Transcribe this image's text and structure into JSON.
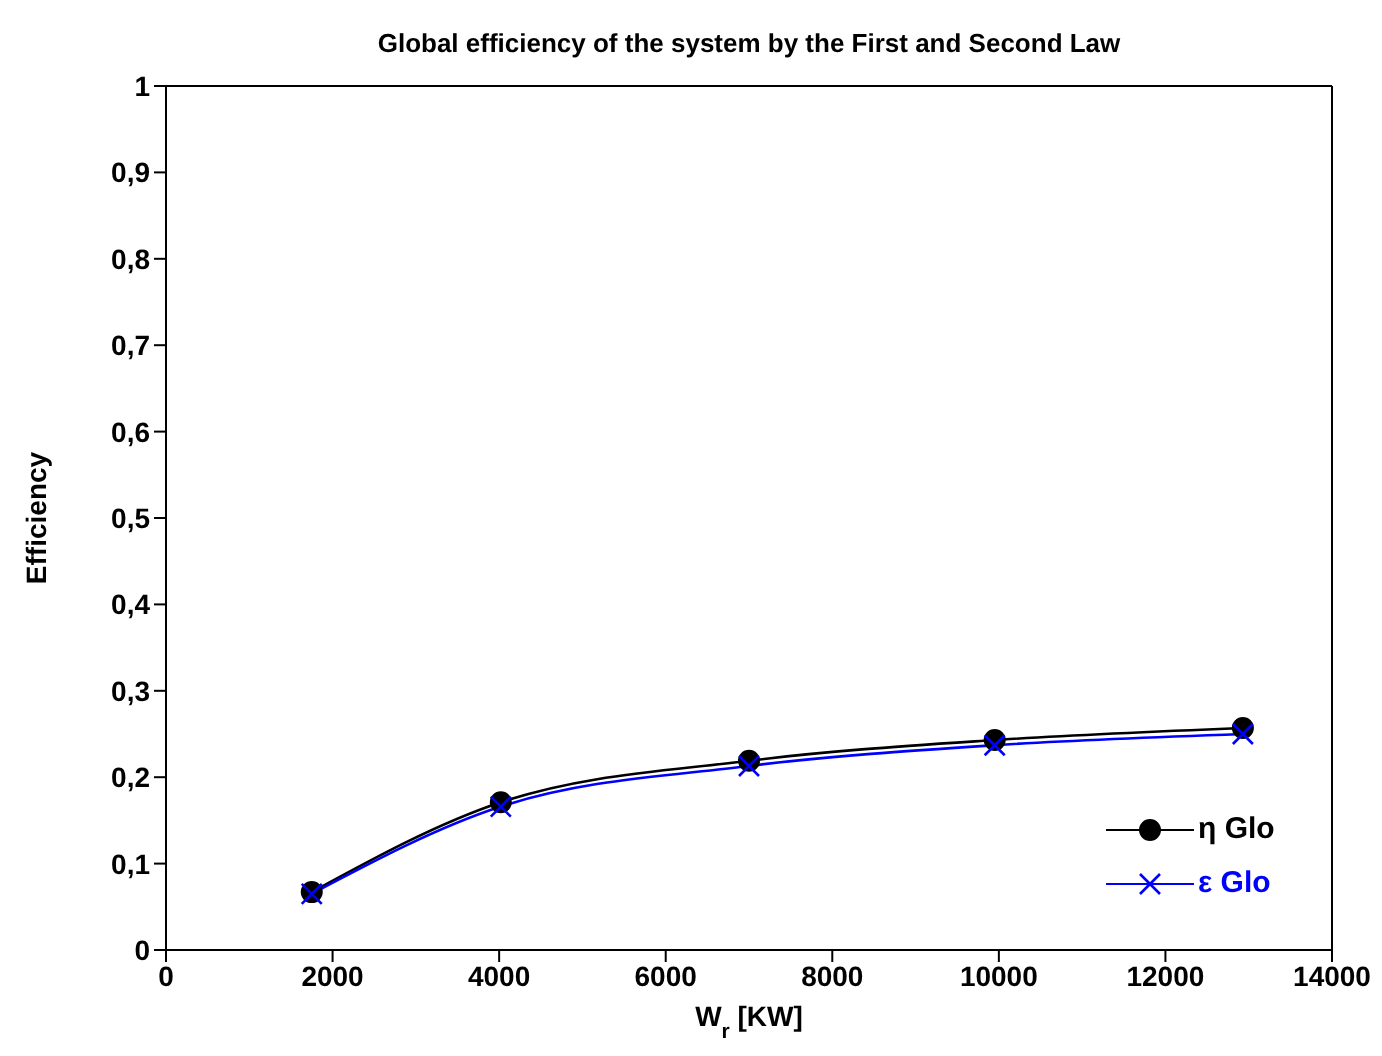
{
  "chart_data": {
    "type": "line",
    "title": "Global efficiency of the system by the First and Second Law",
    "xlabel": "W$_{r}$  [KW]",
    "ylabel": "Efficiency",
    "x": [
      1750,
      4020,
      7000,
      9950,
      12930
    ],
    "series": [
      {
        "name": "η Glo",
        "color": "#000000",
        "marker": "circle",
        "values": [
          0.067,
          0.171,
          0.219,
          0.243,
          0.257
        ]
      },
      {
        "name": "ε Glo",
        "color": "#0000ff",
        "marker": "cross",
        "values": [
          0.065,
          0.166,
          0.213,
          0.237,
          0.25
        ]
      }
    ],
    "xlim": [
      0,
      14000
    ],
    "xticks": [
      0,
      2000,
      4000,
      6000,
      8000,
      10000,
      12000,
      14000
    ],
    "ylim": [
      0,
      1
    ],
    "yticks": [
      0,
      {
        "value": 0.1,
        "label": "0,1"
      },
      {
        "value": 0.2,
        "label": "0,2"
      },
      {
        "value": 0.3,
        "label": "0,3"
      },
      {
        "value": 0.4,
        "label": "0,4"
      },
      {
        "value": 0.5,
        "label": "0,5"
      },
      {
        "value": 0.6,
        "label": "0,6"
      },
      {
        "value": 0.7,
        "label": "0,7"
      },
      {
        "value": 0.8,
        "label": "0,8"
      },
      {
        "value": 0.9,
        "label": "0,9"
      },
      1
    ],
    "grid": false,
    "legend": "bottom right",
    "line_style": "solid"
  }
}
